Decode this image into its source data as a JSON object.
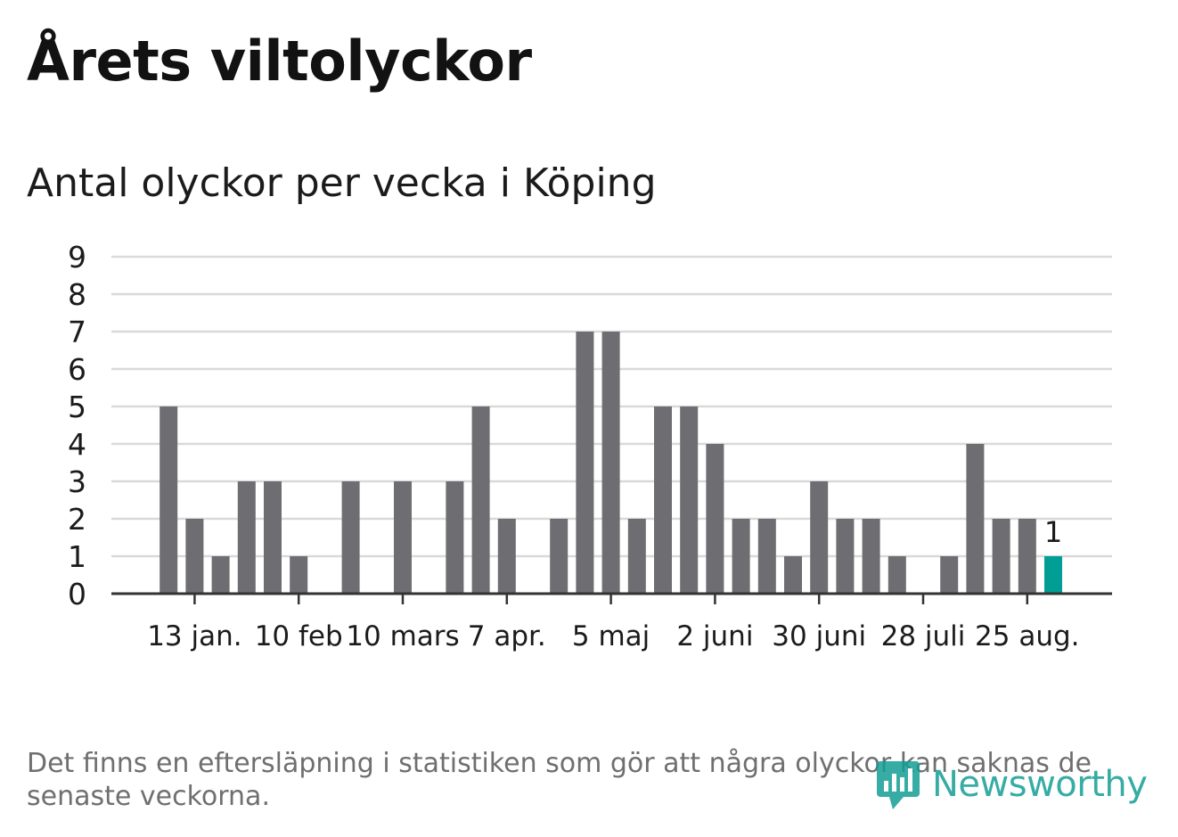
{
  "title": "Årets viltolyckor",
  "subtitle": "Antal olyckor per vecka i Köping",
  "footnote": "Det finns en eftersläpning i statistiken som gör att några olyckor kan saknas de senaste veckorna.",
  "logo": {
    "text": "Newsworthy",
    "icon": "newsworthy-logo-icon"
  },
  "colors": {
    "bar": "#6e6d72",
    "highlight": "#009e95",
    "grid": "#d9d9d9",
    "axis": "#333333",
    "text": "#1b1b1b"
  },
  "chart_data": {
    "type": "bar",
    "title": "Antal olyckor per vecka i Köping",
    "xlabel": "",
    "ylabel": "",
    "ylim": [
      0,
      9
    ],
    "yticks": [
      0,
      1,
      2,
      3,
      4,
      5,
      6,
      7,
      8,
      9
    ],
    "xtick_labels": [
      "13 jan.",
      "10 feb",
      "10 mars",
      "7 apr.",
      "5 maj",
      "2 juni",
      "30 juni",
      "28 juli",
      "25 aug."
    ],
    "xtick_weeks": [
      3,
      7,
      11,
      15,
      19,
      23,
      27,
      31,
      35
    ],
    "weeks": [
      1,
      2,
      3,
      4,
      5,
      6,
      7,
      8,
      9,
      10,
      11,
      12,
      13,
      14,
      15,
      16,
      17,
      18,
      19,
      20,
      21,
      22,
      23,
      24,
      25,
      26,
      27,
      28,
      29,
      30,
      31,
      32,
      33,
      34,
      35,
      36,
      37
    ],
    "values": [
      0,
      5,
      2,
      1,
      3,
      3,
      1,
      0,
      3,
      0,
      3,
      0,
      3,
      5,
      2,
      0,
      2,
      7,
      7,
      2,
      5,
      5,
      4,
      2,
      2,
      1,
      3,
      2,
      2,
      1,
      0,
      1,
      4,
      2,
      2,
      1,
      0
    ],
    "highlight_index": 35,
    "highlight_label": "1",
    "grid": true,
    "legend": "none"
  }
}
